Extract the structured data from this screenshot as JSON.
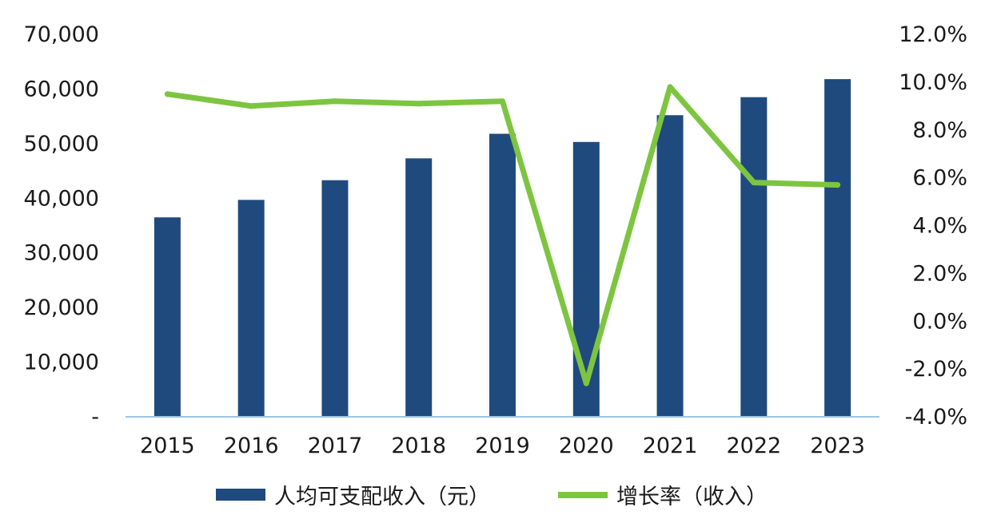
{
  "chart_data": {
    "type": "bar",
    "categories": [
      "2015",
      "2016",
      "2017",
      "2018",
      "2019",
      "2020",
      "2021",
      "2022",
      "2023"
    ],
    "series": [
      {
        "name": "人均可支配收入（元）",
        "type": "bar",
        "axis": "left",
        "values": [
          36500,
          39700,
          43300,
          47300,
          51800,
          50300,
          55200,
          58500,
          61800
        ]
      },
      {
        "name": "增长率（收入）",
        "type": "line",
        "axis": "right",
        "values": [
          9.5,
          9.0,
          9.2,
          9.1,
          9.2,
          -2.6,
          9.8,
          5.8,
          5.7
        ]
      }
    ],
    "y_left": {
      "ylim": [
        0,
        70000
      ],
      "ticks": [
        0,
        10000,
        20000,
        30000,
        40000,
        50000,
        60000,
        70000
      ],
      "tick_labels": [
        "-",
        "10,000",
        "20,000",
        "30,000",
        "40,000",
        "50,000",
        "60,000",
        "70,000"
      ]
    },
    "y_right": {
      "ylim": [
        -4.0,
        12.0
      ],
      "ticks": [
        -4,
        -2,
        0,
        2,
        4,
        6,
        8,
        10,
        12
      ],
      "tick_labels": [
        "-4.0%",
        "-2.0%",
        "0.0%",
        "2.0%",
        "4.0%",
        "6.0%",
        "8.0%",
        "10.0%",
        "12.0%"
      ]
    },
    "grid": false,
    "legend": "bottom",
    "colors": {
      "bar": "#1F4A7E",
      "line": "#7DC540",
      "axis": "#9CC3E4"
    }
  }
}
